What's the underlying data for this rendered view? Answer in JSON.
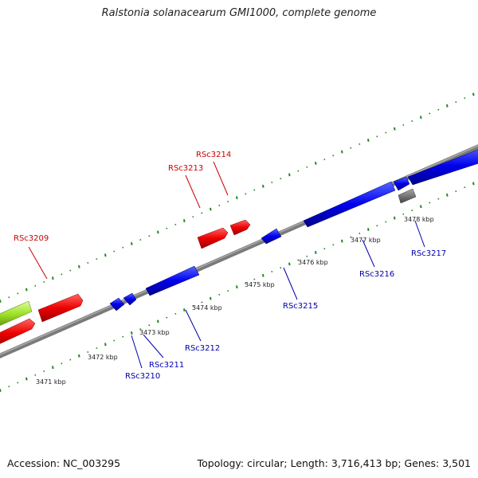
{
  "title": "Ralstonia solanacearum GMI1000, complete genome",
  "footer": {
    "accession": "Accession: NC_003295",
    "summary": "Topology: circular; Length: 3,716,413 bp; Genes: 3,501"
  },
  "colors": {
    "forward": "#ff0000",
    "reverse": "#0000ff",
    "other": "#777777",
    "highlight": "#99dd22",
    "backbone": "#888888",
    "ticks": "#228822",
    "label_forward": "#cc0000",
    "label_reverse": "#0000aa"
  },
  "scale_labels": [
    "3471 kbp",
    "3472 kbp",
    "3473 kbp",
    "3474 kbp",
    "3475 kbp",
    "3476 kbp",
    "3477 kbp",
    "3478 kbp"
  ],
  "genes": [
    {
      "id": "RSc3209",
      "strand": "forward"
    },
    {
      "id": "RSc3213",
      "strand": "forward"
    },
    {
      "id": "RSc3214",
      "strand": "forward"
    },
    {
      "id": "RSc3210",
      "strand": "reverse"
    },
    {
      "id": "RSc3211",
      "strand": "reverse"
    },
    {
      "id": "RSc3212",
      "strand": "reverse"
    },
    {
      "id": "RSc3215",
      "strand": "reverse"
    },
    {
      "id": "RSc3216",
      "strand": "reverse"
    },
    {
      "id": "RSc3217",
      "strand": "reverse"
    }
  ]
}
